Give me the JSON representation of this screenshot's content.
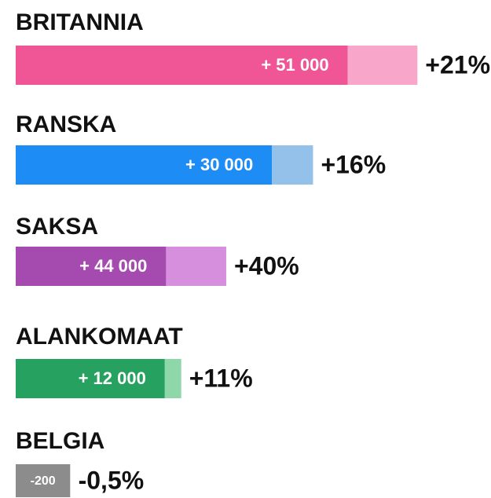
{
  "chart_data": {
    "type": "bar",
    "categories": [
      "BRITANNIA",
      "RANSKA",
      "SAKSA",
      "ALANKOMAAT",
      "BELGIA"
    ],
    "values": [
      51000,
      30000,
      44000,
      12000,
      -200
    ],
    "value_labels": [
      "+ 51 000",
      "+ 30 000",
      "+ 44 000",
      "+ 12 000",
      "-200"
    ],
    "percent": [
      21,
      16,
      40,
      11,
      -0.5
    ],
    "percent_labels": [
      "+21%",
      "+16%",
      "+40%",
      "+11%",
      "-0,5%"
    ],
    "colors": [
      "#f05596",
      "#1e8cf5",
      "#a54aae",
      "#27a160",
      "#8c8c8c"
    ],
    "light_colors": [
      "#f9a6cb",
      "#93c1ea",
      "#d58fdc",
      "#8ed7a8",
      "#bdbdbd"
    ]
  }
}
